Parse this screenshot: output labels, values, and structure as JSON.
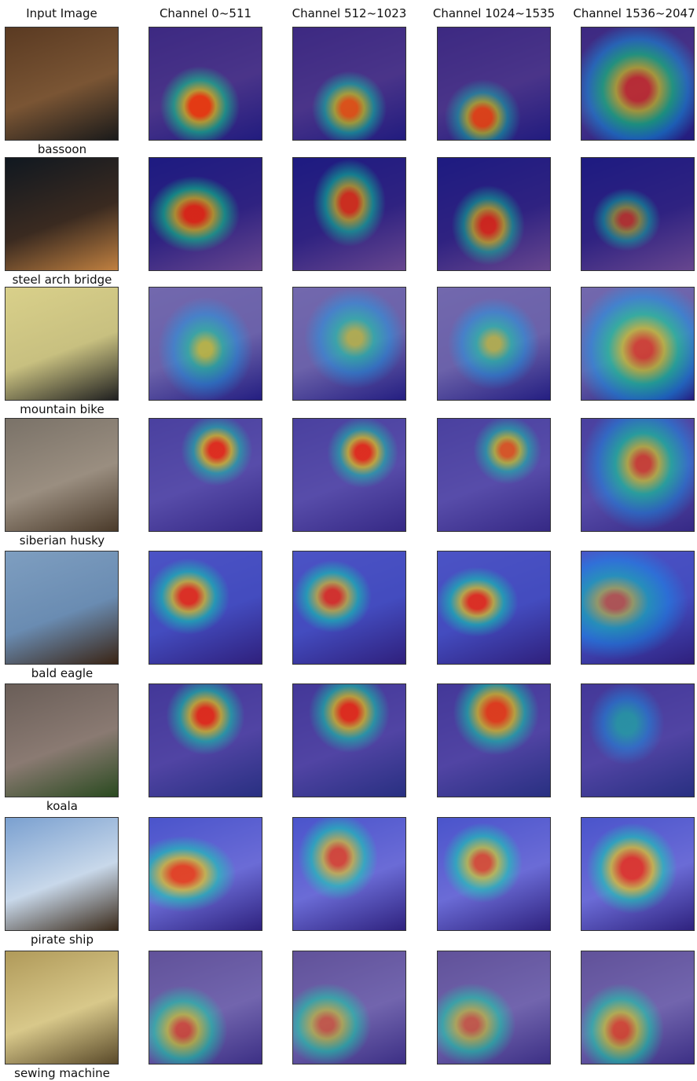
{
  "headers": [
    "Input Image",
    "Channel 0~511",
    "Channel 512~1023",
    "Channel 1024~1535",
    "Channel 1536~2047"
  ],
  "rows": [
    {
      "label": "bassoon",
      "base": [
        "#5a3a22",
        "#7a5534",
        "#1a1a1a"
      ]
    },
    {
      "label": "steel arch bridge",
      "base": [
        "#101820",
        "#3a2a20",
        "#c08040"
      ]
    },
    {
      "label": "mountain bike",
      "base": [
        "#d9d08a",
        "#c8c080",
        "#202020"
      ]
    },
    {
      "label": "siberian husky",
      "base": [
        "#7a7268",
        "#9a8e80",
        "#4a3a2a"
      ]
    },
    {
      "label": "bald eagle",
      "base": [
        "#7e9ec0",
        "#6a8cb2",
        "#3a2414"
      ]
    },
    {
      "label": "koala",
      "base": [
        "#6a5e58",
        "#8a7a72",
        "#2a4a20"
      ]
    },
    {
      "label": "pirate ship",
      "base": [
        "#7aa0d0",
        "#c8d8ea",
        "#3a2a1a"
      ]
    },
    {
      "label": "sewing machine",
      "base": [
        "#b09a5a",
        "#d8c88a",
        "#5a4a2a"
      ]
    }
  ]
}
